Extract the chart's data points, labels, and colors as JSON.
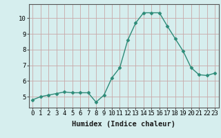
{
  "x": [
    0,
    1,
    2,
    3,
    4,
    5,
    6,
    7,
    8,
    9,
    10,
    11,
    12,
    13,
    14,
    15,
    16,
    17,
    18,
    19,
    20,
    21,
    22,
    23
  ],
  "y": [
    4.8,
    5.0,
    5.1,
    5.2,
    5.3,
    5.25,
    5.25,
    5.25,
    4.65,
    5.1,
    6.2,
    6.85,
    8.6,
    9.7,
    10.35,
    10.35,
    10.35,
    9.5,
    8.7,
    7.9,
    6.85,
    6.4,
    6.35,
    6.5
  ],
  "line_color": "#2d8b78",
  "marker": "D",
  "marker_size": 2.5,
  "line_width": 1.0,
  "bg_color": "#d6eeee",
  "grid_color": "#c8a8a8",
  "xlabel": "Humidex (Indice chaleur)",
  "xlabel_fontsize": 7.5,
  "tick_fontsize": 6.5,
  "xlim": [
    -0.5,
    23.5
  ],
  "ylim": [
    4.3,
    10.9
  ],
  "yticks": [
    5,
    6,
    7,
    8,
    9,
    10
  ],
  "xticks": [
    0,
    1,
    2,
    3,
    4,
    5,
    6,
    7,
    8,
    9,
    10,
    11,
    12,
    13,
    14,
    15,
    16,
    17,
    18,
    19,
    20,
    21,
    22,
    23
  ],
  "xtick_labels": [
    "0",
    "1",
    "2",
    "3",
    "4",
    "5",
    "6",
    "7",
    "8",
    "9",
    "10",
    "11",
    "12",
    "13",
    "14",
    "15",
    "16",
    "17",
    "18",
    "19",
    "20",
    "21",
    "22",
    "23"
  ]
}
